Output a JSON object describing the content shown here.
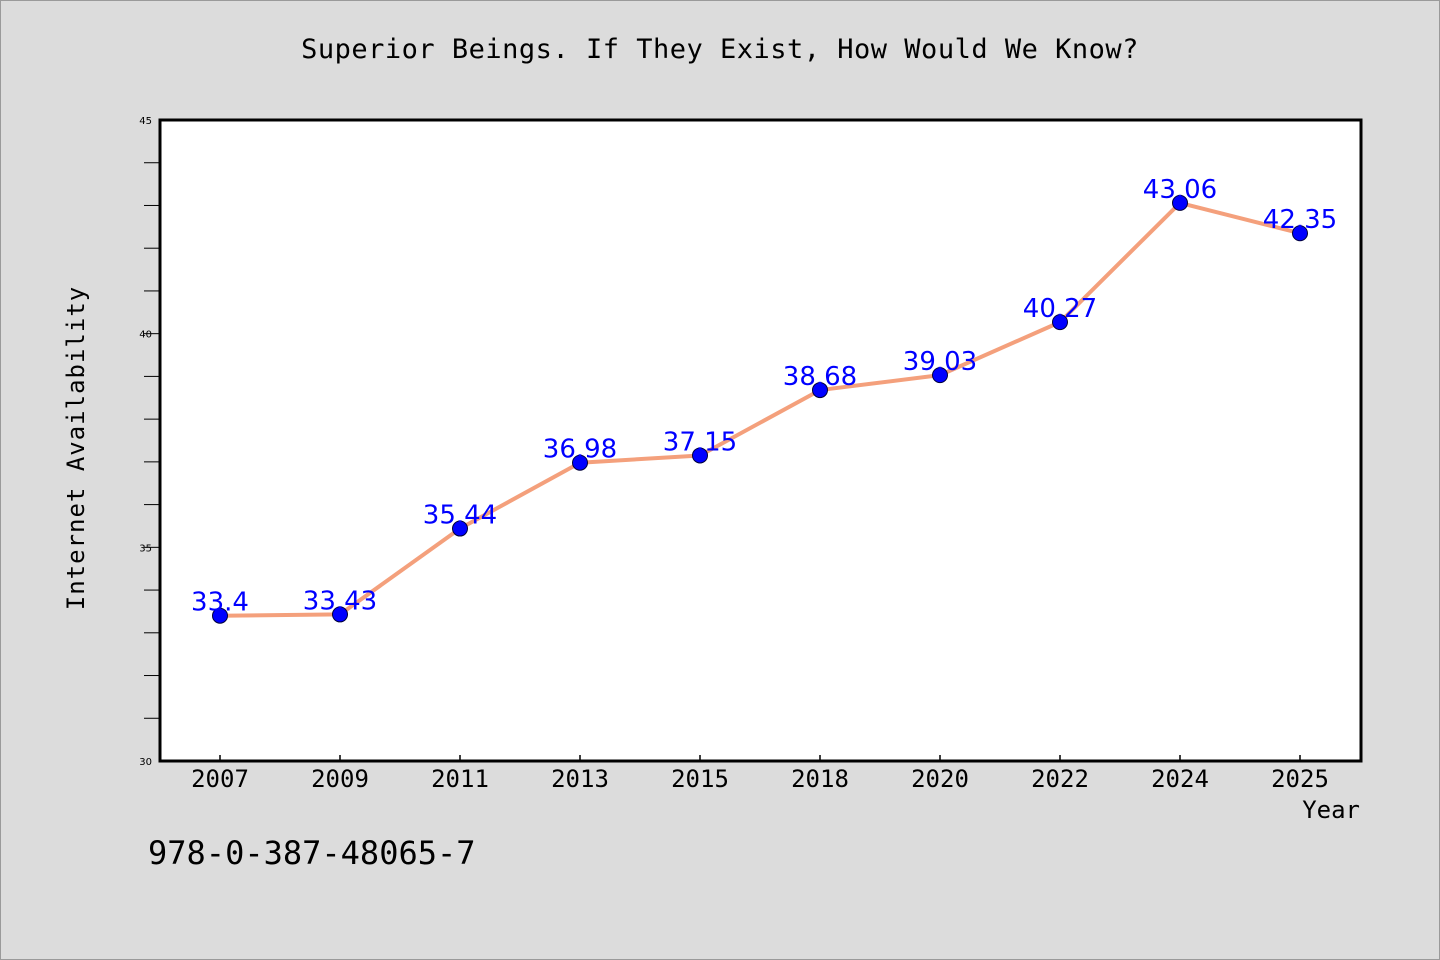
{
  "isbn": "978-0-387-48065-7",
  "colors": {
    "background": "#dcdcdc",
    "plot_area": "#ffffff",
    "line": "#f4a07c",
    "marker": "#0000ff",
    "data_label": "#0000ff"
  },
  "chart_data": {
    "type": "line",
    "title": "Superior Beings. If They Exist, How Would We Know?",
    "xlabel": "Year",
    "ylabel": "Internet Availability",
    "categories": [
      "2007",
      "2009",
      "2011",
      "2013",
      "2015",
      "2018",
      "2020",
      "2022",
      "2024",
      "2025"
    ],
    "series": [
      {
        "values": [
          33.4,
          33.43,
          35.44,
          36.98,
          37.15,
          38.68,
          39.03,
          40.27,
          43.06,
          42.35
        ],
        "labels": [
          "33.4",
          "33.43",
          "35.44",
          "36.98",
          "37.15",
          "38.68",
          "39.03",
          "40.27",
          "43.06",
          "42.35"
        ]
      }
    ],
    "ylim": [
      30,
      45
    ],
    "yticks": [
      30,
      35,
      40,
      45
    ],
    "grid": false,
    "legend": "none"
  }
}
